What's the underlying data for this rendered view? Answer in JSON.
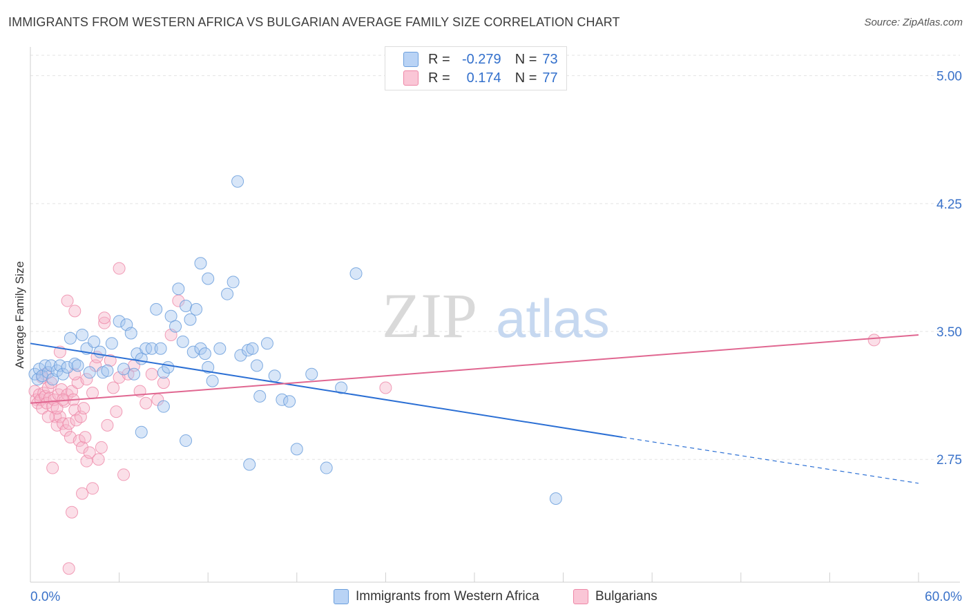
{
  "header": {
    "title": "IMMIGRANTS FROM WESTERN AFRICA VS BULGARIAN AVERAGE FAMILY SIZE CORRELATION CHART",
    "source": "Source: ZipAtlas.com"
  },
  "watermark": {
    "zip": "ZIP",
    "atlas": "atlas"
  },
  "colors": {
    "blue_fill": "#a8c8f0",
    "blue_stroke": "#6a9edc",
    "blue_line": "#2b6fd4",
    "pink_fill": "#f7b8cc",
    "pink_stroke": "#ee86a6",
    "pink_line": "#e06690",
    "axis_label": "#3a72c9",
    "grid": "#e3e3e3"
  },
  "legend": {
    "series1": {
      "r_label": "R =",
      "r_value": "-0.279",
      "n_label": "N =",
      "n_value": "73"
    },
    "series2": {
      "r_label": "R =",
      "r_value": "0.174",
      "n_label": "N =",
      "n_value": "77"
    }
  },
  "bottom_legend": {
    "series1": "Immigrants from Western Africa",
    "series2": "Bulgarians"
  },
  "chart_data": {
    "type": "scatter",
    "title": "IMMIGRANTS FROM WESTERN AFRICA VS BULGARIAN AVERAGE FAMILY SIZE CORRELATION CHART",
    "xlabel": "",
    "ylabel": "Average Family Size",
    "xlim": [
      0,
      60
    ],
    "ylim": [
      2.03,
      5.12
    ],
    "x_tick_labels": [
      "0.0%",
      "60.0%"
    ],
    "y_ticks": [
      2.75,
      3.5,
      4.25,
      5.0
    ],
    "y_tick_labels": [
      "2.75",
      "3.50",
      "4.25",
      "5.00"
    ],
    "grid": true,
    "legend_position": "top-center",
    "series": [
      {
        "name": "Immigrants from Western Africa",
        "R": -0.279,
        "N": 73,
        "trend": {
          "x0": 0,
          "y0": 3.43,
          "x1": 40,
          "y1": 2.88,
          "dash_to_x": 60,
          "dash_to_y": 2.61
        },
        "points": [
          [
            0.3,
            3.25
          ],
          [
            0.5,
            3.22
          ],
          [
            0.6,
            3.28
          ],
          [
            0.8,
            3.24
          ],
          [
            1.0,
            3.3
          ],
          [
            1.2,
            3.26
          ],
          [
            1.4,
            3.3
          ],
          [
            1.5,
            3.22
          ],
          [
            1.8,
            3.27
          ],
          [
            2.0,
            3.3
          ],
          [
            2.2,
            3.25
          ],
          [
            2.5,
            3.29
          ],
          [
            2.7,
            3.46
          ],
          [
            3.0,
            3.31
          ],
          [
            3.2,
            3.3
          ],
          [
            3.5,
            3.48
          ],
          [
            3.8,
            3.4
          ],
          [
            4.0,
            3.26
          ],
          [
            4.3,
            3.44
          ],
          [
            4.7,
            3.38
          ],
          [
            4.9,
            3.26
          ],
          [
            5.2,
            3.27
          ],
          [
            5.5,
            3.43
          ],
          [
            6.0,
            3.56
          ],
          [
            6.3,
            3.28
          ],
          [
            6.5,
            3.54
          ],
          [
            6.8,
            3.49
          ],
          [
            7.0,
            3.25
          ],
          [
            7.2,
            3.37
          ],
          [
            7.5,
            3.34
          ],
          [
            7.8,
            3.4
          ],
          [
            8.2,
            3.4
          ],
          [
            8.5,
            3.63
          ],
          [
            8.8,
            3.4
          ],
          [
            9.0,
            3.26
          ],
          [
            9.3,
            3.29
          ],
          [
            9.5,
            3.59
          ],
          [
            9.8,
            3.53
          ],
          [
            10.0,
            3.75
          ],
          [
            10.3,
            3.44
          ],
          [
            10.5,
            3.65
          ],
          [
            10.8,
            3.57
          ],
          [
            11.0,
            3.38
          ],
          [
            11.2,
            3.63
          ],
          [
            11.5,
            3.4
          ],
          [
            11.8,
            3.37
          ],
          [
            12.0,
            3.29
          ],
          [
            12.3,
            3.21
          ],
          [
            12.8,
            3.4
          ],
          [
            13.3,
            3.72
          ],
          [
            13.7,
            3.79
          ],
          [
            14.2,
            3.36
          ],
          [
            14.7,
            3.39
          ],
          [
            15.0,
            3.4
          ],
          [
            15.3,
            3.3
          ],
          [
            16.0,
            3.43
          ],
          [
            16.5,
            3.24
          ],
          [
            17.0,
            3.1
          ],
          [
            17.5,
            3.09
          ],
          [
            18.0,
            2.81
          ],
          [
            19.0,
            3.25
          ],
          [
            20.0,
            2.7
          ],
          [
            21.0,
            3.17
          ],
          [
            22.0,
            3.84
          ],
          [
            14.0,
            4.38
          ],
          [
            11.5,
            3.9
          ],
          [
            12.0,
            3.81
          ],
          [
            9.0,
            3.06
          ],
          [
            7.5,
            2.91
          ],
          [
            15.5,
            3.12
          ],
          [
            10.5,
            2.86
          ],
          [
            14.8,
            2.72
          ],
          [
            35.5,
            2.52
          ]
        ]
      },
      {
        "name": "Bulgarians",
        "R": 0.174,
        "N": 77,
        "trend": {
          "x0": 0,
          "y0": 3.08,
          "x1": 60,
          "y1": 3.48
        },
        "points": [
          [
            0.3,
            3.15
          ],
          [
            0.4,
            3.1
          ],
          [
            0.5,
            3.08
          ],
          [
            0.6,
            3.13
          ],
          [
            0.7,
            3.1
          ],
          [
            0.8,
            3.05
          ],
          [
            0.9,
            3.14
          ],
          [
            1.0,
            3.12
          ],
          [
            1.1,
            3.08
          ],
          [
            1.2,
            3.17
          ],
          [
            1.3,
            3.11
          ],
          [
            1.4,
            3.2
          ],
          [
            1.5,
            3.06
          ],
          [
            1.6,
            3.1
          ],
          [
            1.7,
            3.0
          ],
          [
            1.8,
            2.95
          ],
          [
            1.9,
            3.13
          ],
          [
            2.0,
            3.0
          ],
          [
            2.1,
            3.16
          ],
          [
            2.2,
            2.96
          ],
          [
            2.3,
            3.09
          ],
          [
            2.4,
            2.92
          ],
          [
            2.5,
            3.13
          ],
          [
            2.6,
            2.96
          ],
          [
            2.7,
            2.88
          ],
          [
            2.8,
            3.15
          ],
          [
            2.9,
            3.1
          ],
          [
            3.0,
            3.04
          ],
          [
            3.1,
            2.98
          ],
          [
            3.2,
            3.2
          ],
          [
            3.3,
            2.86
          ],
          [
            3.4,
            3.0
          ],
          [
            3.5,
            2.82
          ],
          [
            3.6,
            3.05
          ],
          [
            3.7,
            2.88
          ],
          [
            3.8,
            2.74
          ],
          [
            4.0,
            2.79
          ],
          [
            4.2,
            2.58
          ],
          [
            4.4,
            3.3
          ],
          [
            4.6,
            2.75
          ],
          [
            4.8,
            2.82
          ],
          [
            5.0,
            3.55
          ],
          [
            5.2,
            2.95
          ],
          [
            5.4,
            3.33
          ],
          [
            5.6,
            3.17
          ],
          [
            5.8,
            3.03
          ],
          [
            6.0,
            3.23
          ],
          [
            6.3,
            2.66
          ],
          [
            6.6,
            3.25
          ],
          [
            7.0,
            3.3
          ],
          [
            7.4,
            3.15
          ],
          [
            7.8,
            3.08
          ],
          [
            8.2,
            3.25
          ],
          [
            8.6,
            3.1
          ],
          [
            9.0,
            3.2
          ],
          [
            9.5,
            3.48
          ],
          [
            10.0,
            3.68
          ],
          [
            2.5,
            3.68
          ],
          [
            3.0,
            3.62
          ],
          [
            6.0,
            3.87
          ],
          [
            1.5,
            2.7
          ],
          [
            3.5,
            2.55
          ],
          [
            2.8,
            2.44
          ],
          [
            2.6,
            2.11
          ],
          [
            4.5,
            3.35
          ],
          [
            1.0,
            3.25
          ],
          [
            1.2,
            3.0
          ],
          [
            0.8,
            3.23
          ],
          [
            2.0,
            3.38
          ],
          [
            24.0,
            3.17
          ],
          [
            57.0,
            3.45
          ],
          [
            3.0,
            3.25
          ],
          [
            3.8,
            3.22
          ],
          [
            5.0,
            3.58
          ],
          [
            4.2,
            3.14
          ],
          [
            1.8,
            3.05
          ],
          [
            2.2,
            3.1
          ]
        ]
      }
    ]
  }
}
